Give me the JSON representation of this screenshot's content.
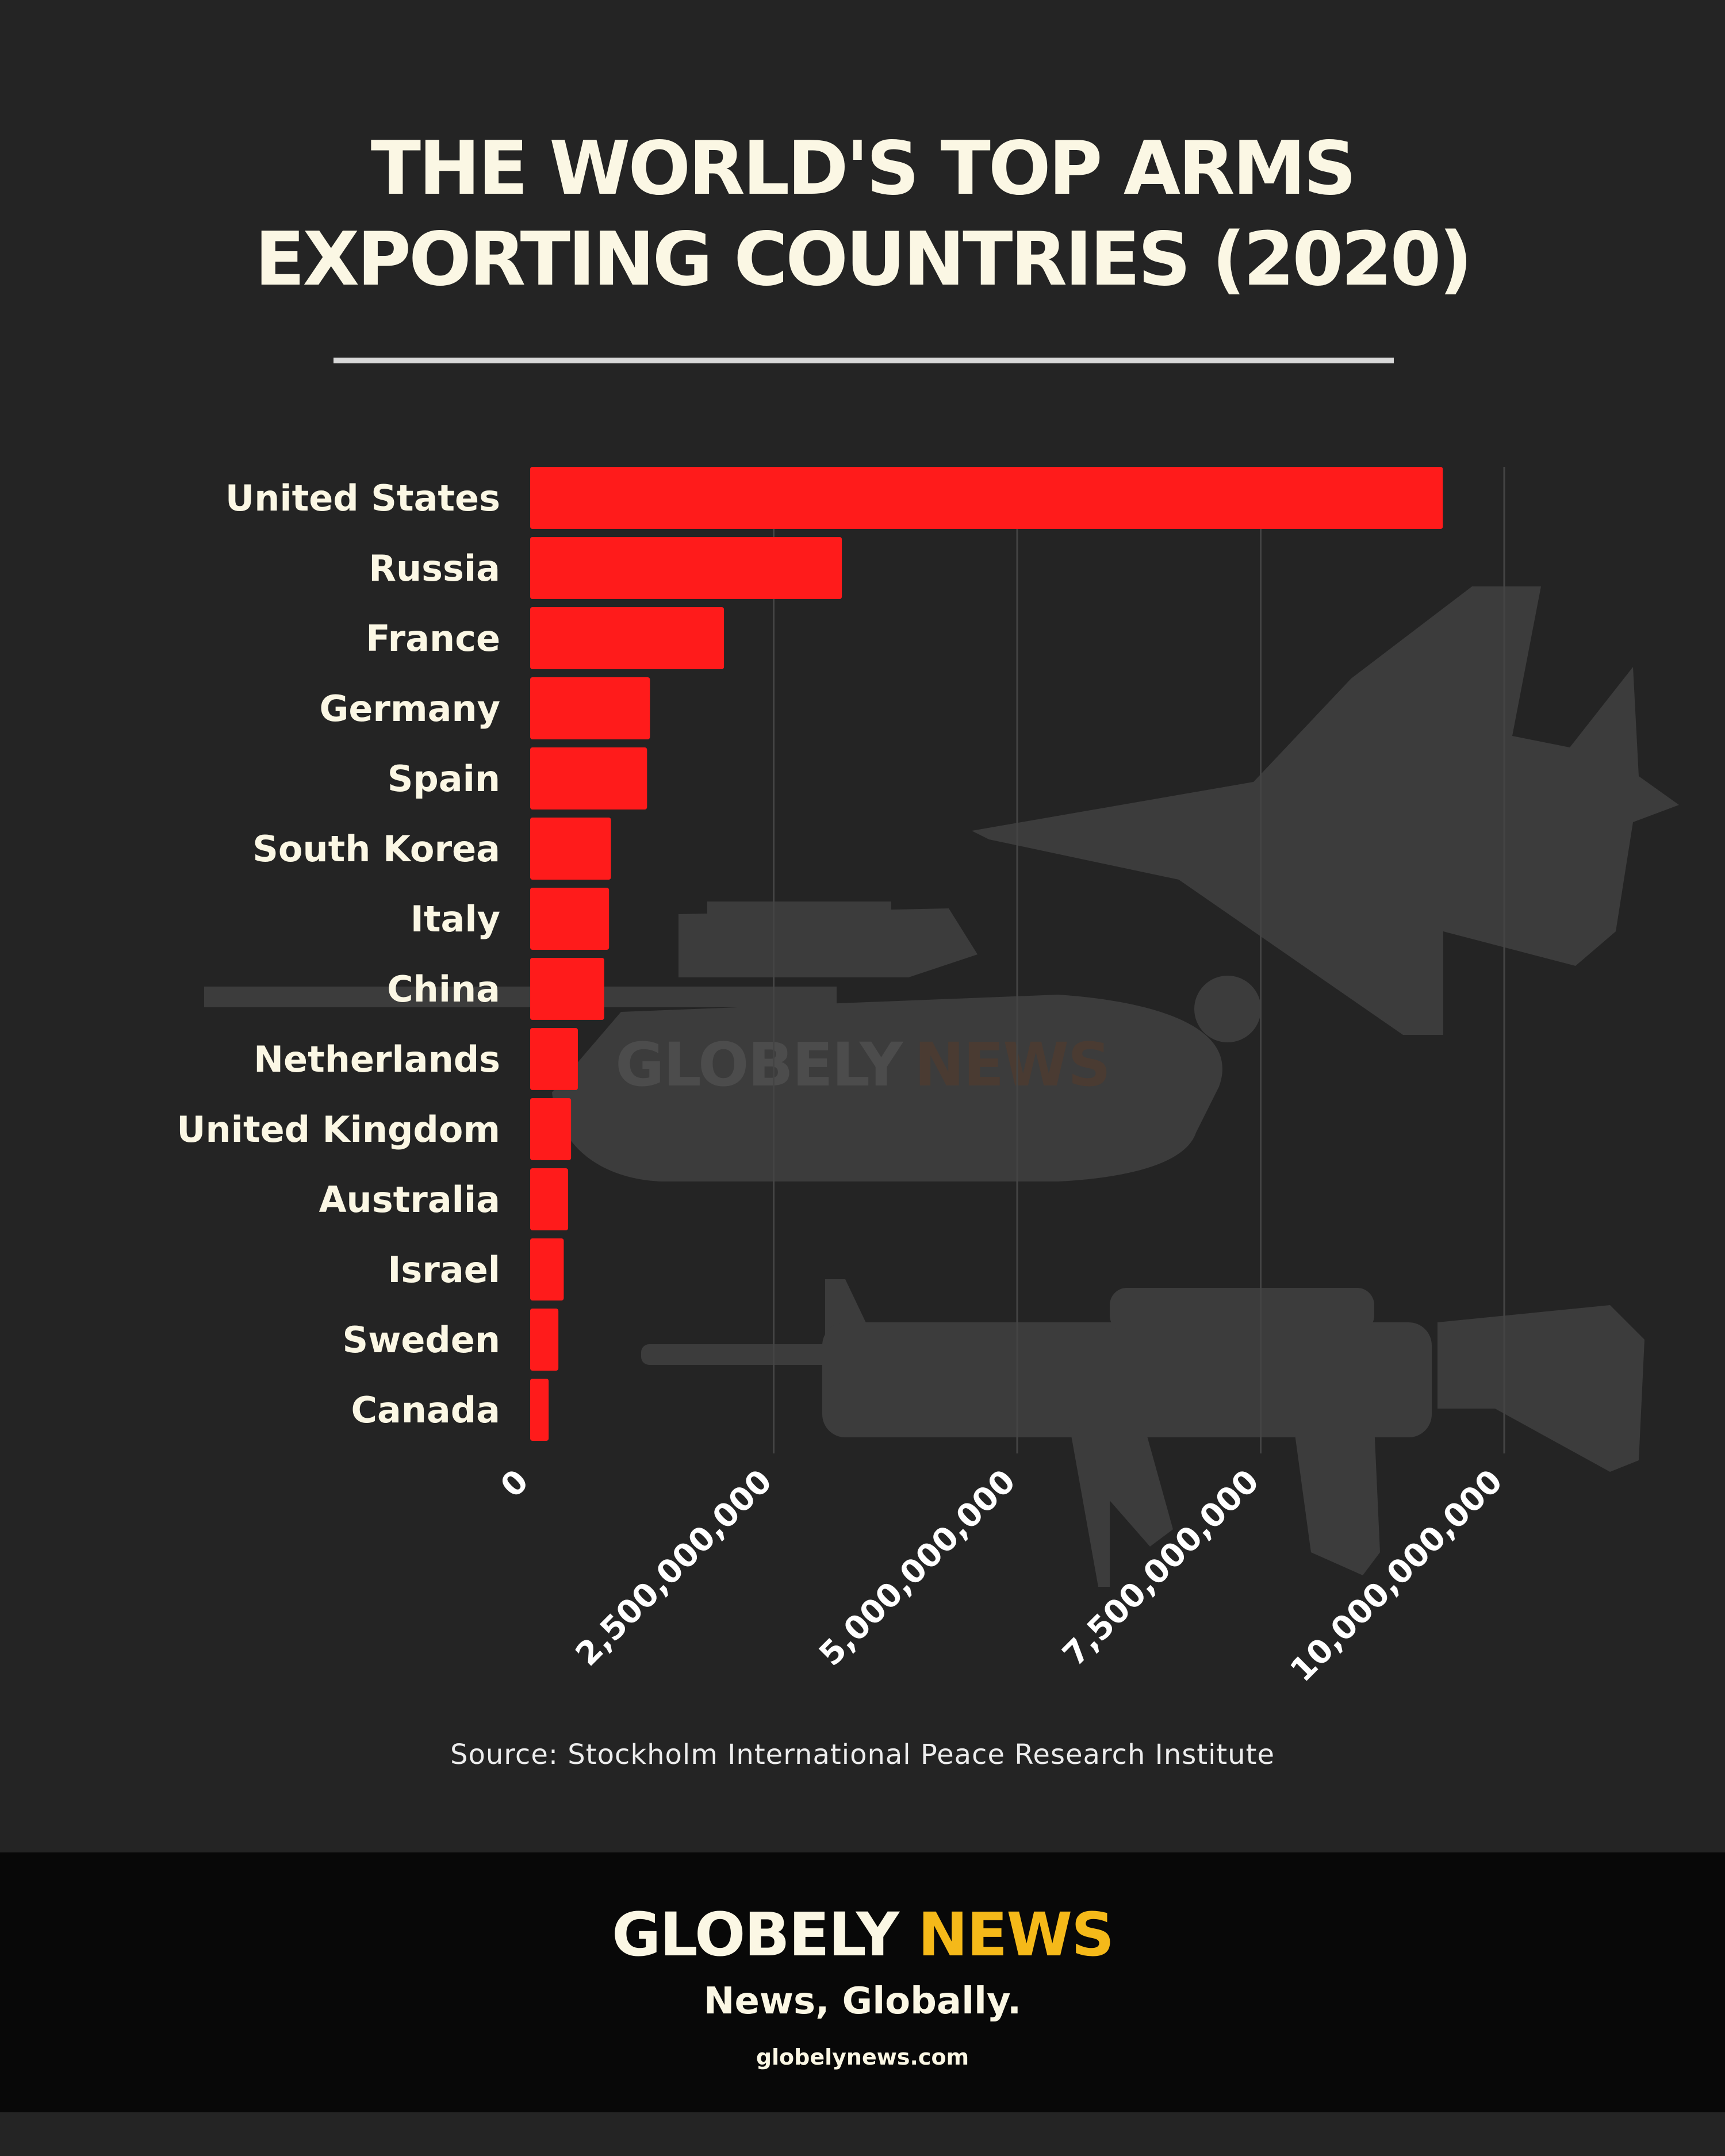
{
  "title": {
    "line1": "THE WORLD'S TOP ARMS",
    "line2": "EXPORTING COUNTRIES (2020)"
  },
  "watermark": {
    "brand_part1": "GLOBELY",
    "brand_part2": "NEWS"
  },
  "source": "Source: Stockholm International Peace Research Institute",
  "footer": {
    "brand_part1": "GLOBELY",
    "brand_part2": "NEWS",
    "tagline": "News, Globally.",
    "url": "globelynews.com"
  },
  "colors": {
    "background": "#242424",
    "bar": "#FF1B1B",
    "title": "#FBF7E4",
    "brand_accent": "#F5B919",
    "footer_bg": "#080808",
    "silhouette": "#3C3C3C"
  },
  "icons": [
    "fighter-jet-icon",
    "tank-icon",
    "rifle-icon"
  ],
  "chart_data": {
    "type": "bar",
    "orientation": "horizontal",
    "title": "THE WORLD'S TOP ARMS EXPORTING COUNTRIES (2020)",
    "categories": [
      "United States",
      "Russia",
      "France",
      "Germany",
      "Spain",
      "South Korea",
      "Italy",
      "China",
      "Netherlands",
      "United Kingdom",
      "Australia",
      "Israel",
      "Sweden",
      "Canada"
    ],
    "values": [
      9370000000,
      3200000000,
      1990000000,
      1230000000,
      1200000000,
      830000000,
      810000000,
      760000000,
      490000000,
      420000000,
      390000000,
      345000000,
      290000000,
      190000000
    ],
    "xlim": [
      0,
      10000000000
    ],
    "xticks": [
      0,
      2500000000,
      5000000000,
      7500000000,
      10000000000
    ],
    "xtick_labels": [
      "0",
      "2,500,000,000",
      "5,000,000,000",
      "7,500,000,000",
      "10,000,000,000"
    ],
    "grid": "vertical",
    "legend": "none"
  }
}
